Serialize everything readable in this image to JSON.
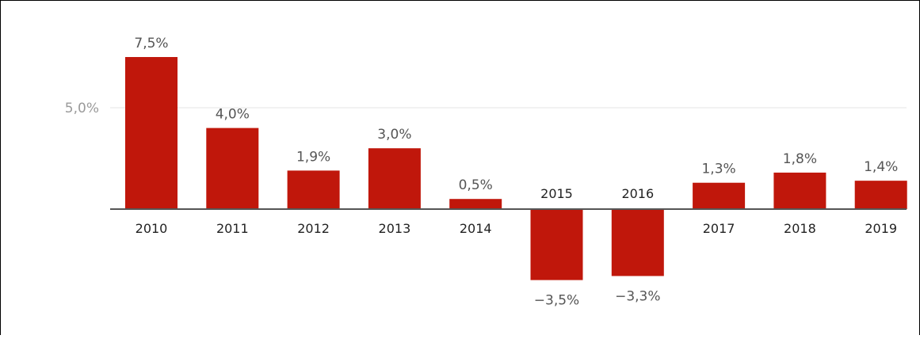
{
  "chart_data": {
    "type": "bar",
    "categories": [
      "2010",
      "2011",
      "2012",
      "2013",
      "2014",
      "2015",
      "2016",
      "2017",
      "2018",
      "2019"
    ],
    "values": [
      7.5,
      4.0,
      1.9,
      3.0,
      0.5,
      -3.5,
      -3.3,
      1.3,
      1.8,
      1.4
    ],
    "value_labels": [
      "7,5%",
      "4,0%",
      "1,9%",
      "3,0%",
      "0,5%",
      "−3,5%",
      "−3,3%",
      "1,3%",
      "1,8%",
      "1,4%"
    ],
    "y_ticks": [
      5.0
    ],
    "y_tick_labels": [
      "5,0%"
    ],
    "title": "",
    "xlabel": "",
    "ylabel": "",
    "ylim": [
      -5.2,
      9.5
    ],
    "grid": true,
    "legend": "none",
    "colors": {
      "bar": "#c0170b",
      "gridline": "#e6e6e6",
      "baseline": "#555555",
      "tick_label": "#222222",
      "value_label": "#555555",
      "y_tick_label": "#9a9a9a"
    }
  }
}
